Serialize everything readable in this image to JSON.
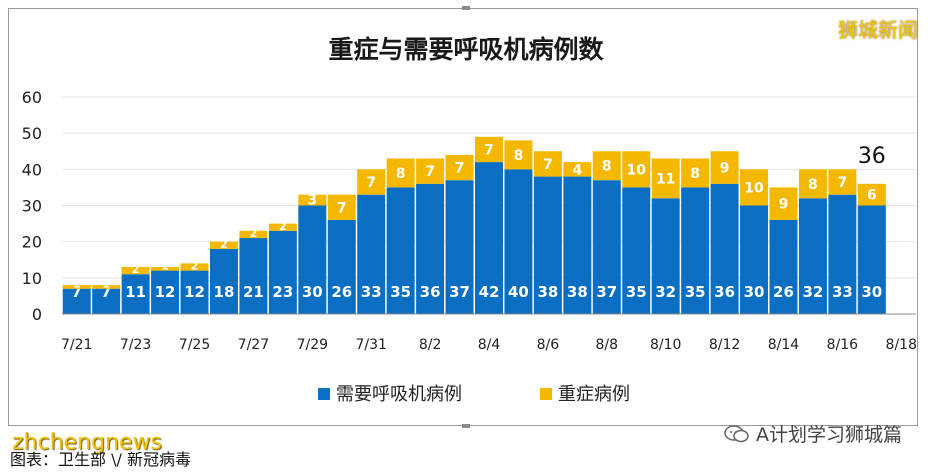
{
  "watermark": "狮城新闻",
  "caption": "图表：卫生部 \\/ 新冠病毒",
  "site_watermark": "zhchengnews",
  "account_label": "A计划学习狮城篇",
  "chart_data": {
    "type": "bar",
    "stacked": true,
    "title": "重症与需要呼吸机病例数",
    "ylim": [
      0,
      60
    ],
    "yticks": [
      0,
      10,
      20,
      30,
      40,
      50,
      60
    ],
    "grid": true,
    "legend_position": "bottom",
    "categories": [
      "7/21",
      "7/22",
      "7/23",
      "7/24",
      "7/25",
      "7/26",
      "7/27",
      "7/28",
      "7/29",
      "7/30",
      "7/31",
      "8/1",
      "8/2",
      "8/3",
      "8/4",
      "8/5",
      "8/6",
      "8/7",
      "8/8",
      "8/9",
      "8/10",
      "8/11",
      "8/12",
      "8/13",
      "8/14",
      "8/15",
      "8/16",
      "8/17",
      "8/18"
    ],
    "x_tick_labels": [
      "7/21",
      "7/23",
      "7/25",
      "7/27",
      "7/29",
      "7/31",
      "8/2",
      "8/4",
      "8/6",
      "8/8",
      "8/10",
      "8/12",
      "8/14",
      "8/16",
      "8/18"
    ],
    "series": [
      {
        "name": "需要呼吸机病例",
        "color": "#0a6fc2",
        "values": [
          7,
          7,
          11,
          12,
          12,
          18,
          21,
          23,
          30,
          26,
          33,
          35,
          36,
          37,
          42,
          40,
          38,
          38,
          37,
          35,
          32,
          35,
          36,
          30,
          26,
          32,
          33,
          30,
          null
        ]
      },
      {
        "name": "重症病例",
        "color": "#f5b800",
        "values": [
          1,
          1,
          2,
          1,
          2,
          2,
          2,
          2,
          3,
          7,
          7,
          8,
          7,
          7,
          7,
          8,
          7,
          4,
          8,
          10,
          11,
          8,
          9,
          10,
          9,
          8,
          7,
          6,
          null
        ]
      }
    ],
    "annotations": [
      {
        "category": "8/17",
        "text": "36"
      }
    ]
  }
}
